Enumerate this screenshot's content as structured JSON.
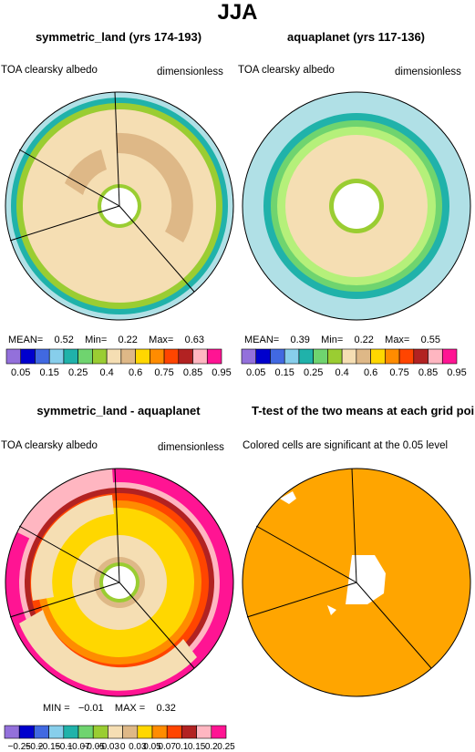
{
  "title": "JJA",
  "panels": [
    {
      "title": "symmetric_land (yrs 174-193)",
      "left_label": "TOA clearsky albedo",
      "right_label": "dimensionless",
      "stats": {
        "mean_label": "MEAN=",
        "mean": "0.52",
        "min_label": "Min=",
        "min": "0.22",
        "max_label": "Max=",
        "max": "0.63"
      },
      "colorbar": {
        "colors": [
          "#9370db",
          "#0000cd",
          "#4169e1",
          "#87ceeb",
          "#20b2aa",
          "#6fd46f",
          "#9acd32",
          "#f5deb3",
          "#deb887",
          "#ffd700",
          "#ff8c00",
          "#ff4500",
          "#b22222",
          "#ffb6c1",
          "#ff1493"
        ],
        "tick_labels": [
          "0.05",
          "0.15",
          "0.25",
          "0.4",
          "0.6",
          "0.75",
          "0.85",
          "0.95"
        ]
      }
    },
    {
      "title": "aquaplanet (yrs 117-136)",
      "left_label": "TOA clearsky albedo",
      "right_label": "dimensionless",
      "stats": {
        "mean_label": "MEAN=",
        "mean": "0.39",
        "min_label": "Min=",
        "min": "0.22",
        "max_label": "Max=",
        "max": "0.55"
      },
      "colorbar": {
        "colors": [
          "#9370db",
          "#0000cd",
          "#4169e1",
          "#87ceeb",
          "#20b2aa",
          "#6fd46f",
          "#9acd32",
          "#f5deb3",
          "#deb887",
          "#ffd700",
          "#ff8c00",
          "#ff4500",
          "#b22222",
          "#ffb6c1",
          "#ff1493"
        ],
        "tick_labels": [
          "0.05",
          "0.15",
          "0.25",
          "0.4",
          "0.6",
          "0.75",
          "0.85",
          "0.95"
        ]
      }
    },
    {
      "title": "symmetric_land - aquaplanet",
      "left_label": "TOA clearsky albedo",
      "right_label": "dimensionless",
      "stats": {
        "min_label": "MIN =",
        "min": "−0.01",
        "max_label": "MAX =",
        "max": "0.32"
      },
      "colorbar": {
        "colors": [
          "#9370db",
          "#0000cd",
          "#4169e1",
          "#87ceeb",
          "#20b2aa",
          "#6fd46f",
          "#9acd32",
          "#f5deb3",
          "#deb887",
          "#ffd700",
          "#ff8c00",
          "#ff4500",
          "#b22222",
          "#ffb6c1",
          "#ff1493"
        ],
        "tick_labels": [
          "−0.25",
          "−0.2",
          "−0.15",
          "−0.1",
          "−0.07",
          "−0.05",
          "−0.03",
          "0",
          "0.03",
          "0.05",
          "0.07",
          "0.1",
          "0.15",
          "0.2",
          "0.25"
        ]
      }
    },
    {
      "title": "T-test of the two means at each grid point",
      "left_label": "Colored cells are significant at the 0.05 level"
    }
  ],
  "chart_data": [
    {
      "type": "heatmap",
      "title": "symmetric_land (yrs 174-193)",
      "variable": "TOA clearsky albedo",
      "units": "dimensionless",
      "projection": "polar",
      "contour_levels": [
        0.05,
        0.1,
        0.15,
        0.2,
        0.25,
        0.3,
        0.4,
        0.5,
        0.6,
        0.7,
        0.75,
        0.8,
        0.85,
        0.9,
        0.95
      ],
      "mean": 0.52,
      "min": 0.22,
      "max": 0.63
    },
    {
      "type": "heatmap",
      "title": "aquaplanet (yrs 117-136)",
      "variable": "TOA clearsky albedo",
      "units": "dimensionless",
      "projection": "polar",
      "contour_levels": [
        0.05,
        0.1,
        0.15,
        0.2,
        0.25,
        0.3,
        0.4,
        0.5,
        0.6,
        0.7,
        0.75,
        0.8,
        0.85,
        0.9,
        0.95
      ],
      "mean": 0.39,
      "min": 0.22,
      "max": 0.55
    },
    {
      "type": "heatmap",
      "title": "symmetric_land - aquaplanet",
      "variable": "TOA clearsky albedo",
      "units": "dimensionless",
      "projection": "polar",
      "contour_levels": [
        -0.25,
        -0.2,
        -0.15,
        -0.1,
        -0.07,
        -0.05,
        -0.03,
        0,
        0.03,
        0.05,
        0.07,
        0.1,
        0.15,
        0.2,
        0.25
      ],
      "min": -0.01,
      "max": 0.32
    },
    {
      "type": "heatmap",
      "title": "T-test of the two means at each grid point",
      "projection": "polar",
      "significance_level": 0.05
    }
  ]
}
